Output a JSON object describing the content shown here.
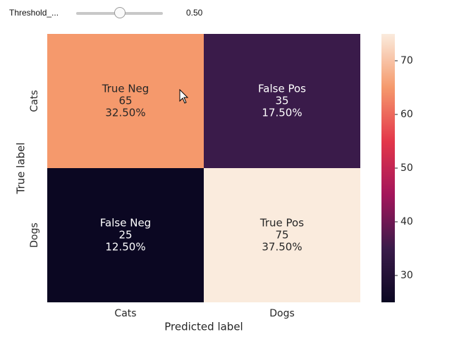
{
  "widget": {
    "slider_label": "Threshold_...",
    "slider_value": "0.50",
    "slider_fraction": 0.5
  },
  "chart_data": {
    "type": "heatmap",
    "xlabel": "Predicted label",
    "ylabel": "True label",
    "x_categories": [
      "Cats",
      "Dogs"
    ],
    "y_categories": [
      "Cats",
      "Dogs"
    ],
    "values": [
      [
        65,
        35
      ],
      [
        25,
        75
      ]
    ],
    "cell_labels": [
      [
        [
          "True Neg",
          "65",
          "32.50%"
        ],
        [
          "False Pos",
          "35",
          "17.50%"
        ]
      ],
      [
        [
          "False Neg",
          "25",
          "12.50%"
        ],
        [
          "True Pos",
          "75",
          "37.50%"
        ]
      ]
    ],
    "colorbar": {
      "min": 25,
      "max": 75,
      "ticks": [
        30,
        40,
        50,
        60,
        70
      ]
    },
    "colormap_stops": [
      "#0b0722",
      "#3a1b4a",
      "#a3155b",
      "#e3374a",
      "#f5996c",
      "#faebdd"
    ]
  }
}
